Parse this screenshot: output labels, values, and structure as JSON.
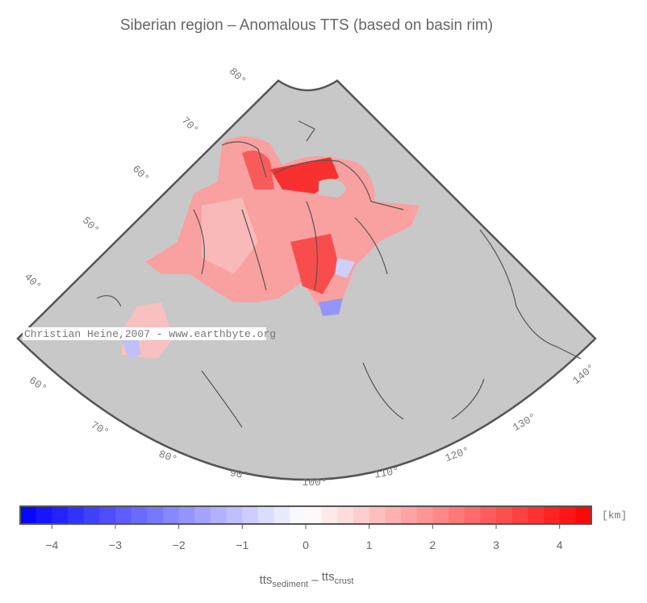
{
  "title": "Siberian region – Anomalous TTS (based on basin rim)",
  "watermark": "Christian Heine,2007 - www.earthbyte.org",
  "latitude_labels": [
    "80°",
    "70°",
    "60°",
    "50°",
    "40°"
  ],
  "longitude_labels": [
    "60°",
    "70°",
    "80°",
    "90°",
    "100°",
    "110°",
    "120°",
    "130°",
    "140°"
  ],
  "colorbar": {
    "lim": [
      -4.5,
      4.5
    ],
    "step": 0.25,
    "low_color": "#0000ff",
    "mid_color": "#ffffff",
    "high_color": "#ff0000",
    "ticks": [
      {
        "value": -4,
        "label": "−4"
      },
      {
        "value": -3,
        "label": "−3"
      },
      {
        "value": -2,
        "label": "−2"
      },
      {
        "value": -1,
        "label": "−1"
      },
      0,
      1,
      2,
      3,
      4
    ],
    "unit": "[km]",
    "label": {
      "main1": "tts",
      "sub1": "sediment",
      "sep": " – ",
      "main2": "tts",
      "sub2": "crust"
    }
  }
}
